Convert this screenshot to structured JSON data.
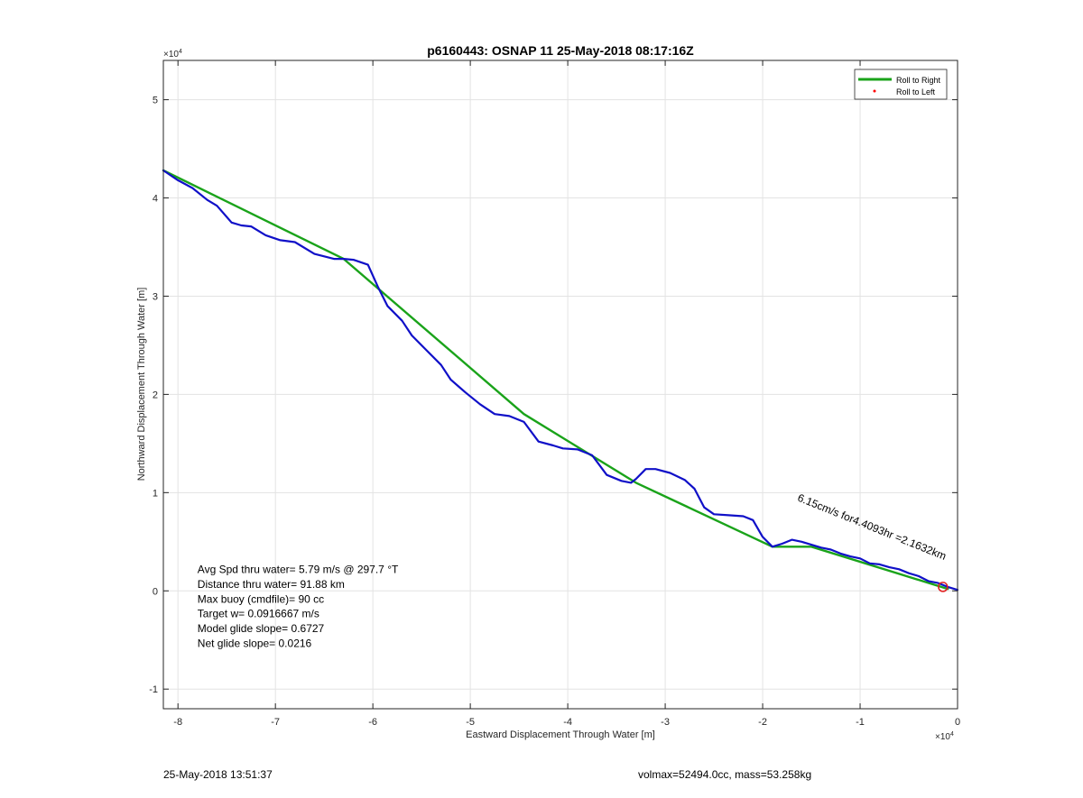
{
  "chart_data": {
    "type": "line",
    "title": "p6160443: OSNAP 11 25-May-2018 08:17:16Z",
    "xlabel": "Eastward Displacement Through Water [m]",
    "ylabel": "Northward Displacement Through Water [m]",
    "x_exponent_label": "×10",
    "x_exponent": "4",
    "y_exponent_label": "×10",
    "y_exponent": "4",
    "xlim": [
      -8.15,
      0
    ],
    "ylim": [
      -1.2,
      5.4
    ],
    "x_ticks": [
      -8,
      -7,
      -6,
      -5,
      -4,
      -3,
      -2,
      -1,
      0
    ],
    "y_ticks": [
      -1,
      0,
      1,
      2,
      3,
      4,
      5
    ],
    "grid": true,
    "legend_position": "top-right",
    "legend": [
      {
        "label": "Roll to Right",
        "color": "#1aa31a",
        "marker": "line"
      },
      {
        "label": "Roll to Left",
        "color": "#ff0000",
        "marker": "dot"
      }
    ],
    "series": [
      {
        "name": "Roll to Right",
        "color": "#1aa31a",
        "x": [
          -8.15,
          -6.3,
          -4.45,
          -3.3,
          -1.9,
          -1.5,
          -0.1
        ],
        "y": [
          4.28,
          3.38,
          1.8,
          1.1,
          0.45,
          0.45,
          0.02
        ]
      },
      {
        "color": "#1010c8",
        "x": [
          -8.15,
          -8.0,
          -7.85,
          -7.7,
          -7.6,
          -7.45,
          -7.35,
          -7.25,
          -7.1,
          -6.95,
          -6.8,
          -6.6,
          -6.4,
          -6.3,
          -6.2,
          -6.05,
          -5.95,
          -5.85,
          -5.7,
          -5.6,
          -5.45,
          -5.3,
          -5.2,
          -5.05,
          -4.9,
          -4.75,
          -4.6,
          -4.45,
          -4.3,
          -4.15,
          -4.05,
          -3.9,
          -3.75,
          -3.6,
          -3.45,
          -3.35,
          -3.3,
          -3.2,
          -3.1,
          -2.95,
          -2.8,
          -2.7,
          -2.6,
          -2.5,
          -2.35,
          -2.2,
          -2.1,
          -2.0,
          -1.9,
          -1.8,
          -1.7,
          -1.6,
          -1.5,
          -1.4,
          -1.3,
          -1.2,
          -1.1,
          -1.0,
          -0.9,
          -0.8,
          -0.7,
          -0.6,
          -0.5,
          -0.4,
          -0.3,
          -0.2,
          -0.1,
          0.0
        ],
        "y": [
          4.28,
          4.18,
          4.1,
          3.98,
          3.92,
          3.75,
          3.72,
          3.71,
          3.62,
          3.57,
          3.55,
          3.43,
          3.38,
          3.38,
          3.37,
          3.32,
          3.1,
          2.9,
          2.75,
          2.6,
          2.45,
          2.3,
          2.15,
          2.02,
          1.9,
          1.8,
          1.78,
          1.72,
          1.52,
          1.48,
          1.45,
          1.44,
          1.38,
          1.18,
          1.12,
          1.1,
          1.14,
          1.24,
          1.24,
          1.2,
          1.13,
          1.04,
          0.85,
          0.78,
          0.77,
          0.76,
          0.72,
          0.55,
          0.45,
          0.48,
          0.52,
          0.5,
          0.47,
          0.44,
          0.42,
          0.38,
          0.35,
          0.33,
          0.28,
          0.27,
          0.24,
          0.22,
          0.18,
          0.15,
          0.1,
          0.08,
          0.04,
          0.01
        ]
      }
    ],
    "annotations": [
      {
        "text": "6.15cm/s for4.4093hr =2.1632km",
        "x": -1.65,
        "y": 0.92,
        "rotation_deg": 22
      },
      {
        "text": "Avg Spd thru water=  5.79 m/s @ 297.7 °T",
        "x": -7.8,
        "y": 0.18
      },
      {
        "text": "Distance thru water= 91.88 km",
        "x": -7.8,
        "y": 0.03
      },
      {
        "text": "Max buoy (cmdfile)= 90 cc",
        "x": -7.8,
        "y": -0.12
      },
      {
        "text": "Target w= 0.0916667 m/s",
        "x": -7.8,
        "y": -0.27
      },
      {
        "text": "Model glide slope= 0.6727",
        "x": -7.8,
        "y": -0.42
      },
      {
        "text": "Net glide slope= 0.0216",
        "x": -7.8,
        "y": -0.57
      }
    ]
  },
  "footer": {
    "left": "25-May-2018 13:51:37",
    "right": "volmax=52494.0cc, mass=53.258kg"
  }
}
